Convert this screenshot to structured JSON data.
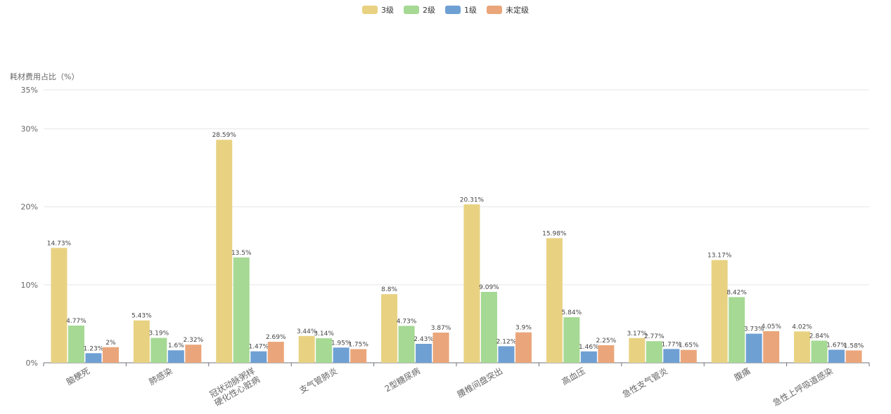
{
  "chart_data": {
    "type": "bar",
    "ylabel": "耗材费用占比（%）",
    "ylim": [
      0,
      35
    ],
    "y_ticks": [
      "0%",
      "10%",
      "20%",
      "30%",
      "35%"
    ],
    "y_tick_values": [
      0,
      10,
      20,
      30,
      35
    ],
    "grid": true,
    "legend_position": "top-center",
    "categories": [
      [
        "脑梗死"
      ],
      [
        "肺感染"
      ],
      [
        "冠状动脉粥样",
        "硬化性心脏病"
      ],
      [
        "支气管肺炎"
      ],
      [
        "2型糖尿病"
      ],
      [
        "腰椎间盘突出"
      ],
      [
        "高血压"
      ],
      [
        "急性支气管炎"
      ],
      [
        "腹痛"
      ],
      [
        "急性上呼吸道感染"
      ]
    ],
    "series": [
      {
        "name": "3级",
        "color": "#e8d282",
        "values": [
          14.73,
          5.43,
          28.59,
          3.44,
          8.8,
          20.31,
          15.98,
          3.17,
          13.17,
          4.02
        ],
        "labels": [
          "14.73%",
          "5.43%",
          "28.59%",
          "3.44%",
          "8.8%",
          "20.31%",
          "15.98%",
          "3.17%",
          "13.17%",
          "4.02%"
        ]
      },
      {
        "name": "2级",
        "color": "#a5d994",
        "values": [
          4.77,
          3.19,
          13.5,
          3.14,
          4.73,
          9.09,
          5.84,
          2.77,
          8.42,
          2.84
        ],
        "labels": [
          "4.77%",
          "3.19%",
          "13.5%",
          "3.14%",
          "4.73%",
          "9.09%",
          "5.84%",
          "2.77%",
          "8.42%",
          "2.84%"
        ]
      },
      {
        "name": "1级",
        "color": "#6fa0d4",
        "values": [
          1.23,
          1.6,
          1.47,
          1.95,
          2.43,
          2.12,
          1.46,
          1.77,
          3.73,
          1.67
        ],
        "labels": [
          "1.23%",
          "1.6%",
          "1.47%",
          "1.95%",
          "2.43%",
          "2.12%",
          "1.46%",
          "1.77%",
          "3.73%",
          "1.67%"
        ]
      },
      {
        "name": "未定级",
        "color": "#eaa67a",
        "values": [
          2,
          2.32,
          2.69,
          1.75,
          3.87,
          3.9,
          2.25,
          1.65,
          4.05,
          1.58
        ],
        "labels": [
          "2%",
          "2.32%",
          "2.69%",
          "1.75%",
          "3.87%",
          "3.9%",
          "2.25%",
          "1.65%",
          "4.05%",
          "1.58%"
        ]
      }
    ]
  }
}
